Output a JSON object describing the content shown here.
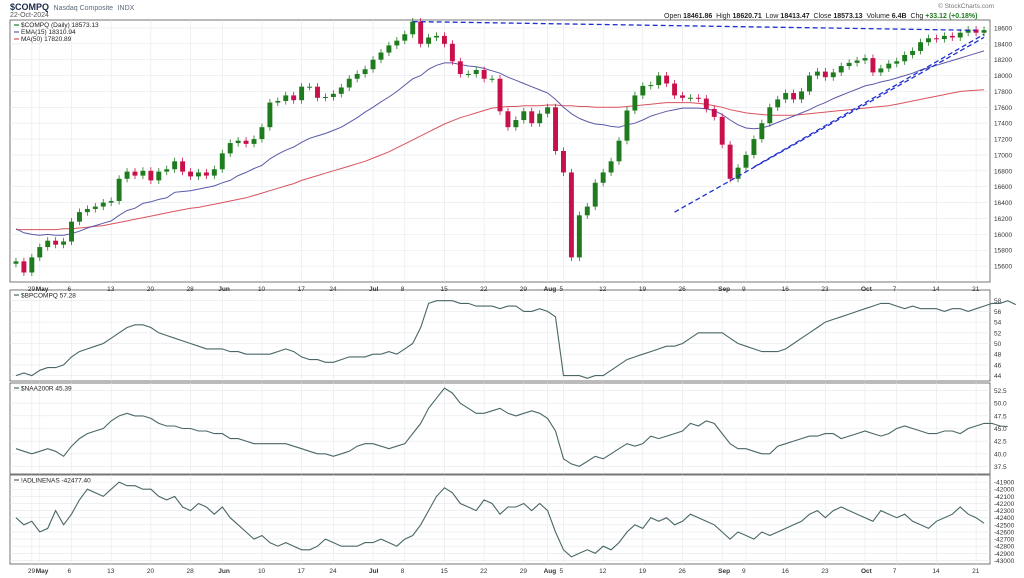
{
  "header": {
    "symbol": "$COMPQ",
    "name": "Nasdaq Composite",
    "exchange": "INDX",
    "date": "22-Oct-2024",
    "ohlc": {
      "open_label": "Open",
      "open": "18461.86",
      "high_label": "High",
      "high": "18620.71",
      "low_label": "Low",
      "low": "18413.47",
      "close_label": "Close",
      "close": "18573.13",
      "volume_label": "Volume",
      "volume": "6.4B",
      "chg_label": "Chg",
      "chg": "+33.12 (+0.18%)"
    },
    "brand": "© StockCharts.com"
  },
  "colors": {
    "up": "#1e7b1e",
    "down": "#c8104a",
    "ema": "#5a5aa8",
    "ma": "#d9535f",
    "trend": "#1f2fd0",
    "ind": "#4a6666",
    "grid": "#e4e8ec",
    "panelbg": "#ffffff"
  },
  "chart_data": [
    {
      "type": "candlestick",
      "legend": [
        {
          "text": "$COMPQ (Daily) 18573.13",
          "color": "#1e7b1e",
          "key": "price"
        },
        {
          "text": "EMA(15) 18310.94",
          "color": "#5a5aa8",
          "key": "ema"
        },
        {
          "text": "MA(50) 17820.89",
          "color": "#d9535f",
          "key": "ma"
        }
      ],
      "ylim": [
        15400,
        18700
      ],
      "yticks": [
        15600,
        15800,
        16000,
        16200,
        16400,
        16600,
        16800,
        17000,
        17200,
        17400,
        17600,
        17800,
        18000,
        18200,
        18400,
        18600
      ],
      "x_ticks": [
        {
          "i": 2,
          "label": "29"
        },
        {
          "i": 3,
          "label": "May",
          "bold": true
        },
        {
          "i": 7,
          "label": "6"
        },
        {
          "i": 12,
          "label": "13"
        },
        {
          "i": 17,
          "label": "20"
        },
        {
          "i": 22,
          "label": "28"
        },
        {
          "i": 26,
          "label": "Jun",
          "bold": true
        },
        {
          "i": 31,
          "label": "10"
        },
        {
          "i": 36,
          "label": "17"
        },
        {
          "i": 40,
          "label": "24"
        },
        {
          "i": 45,
          "label": "Jul",
          "bold": true
        },
        {
          "i": 49,
          "label": "8"
        },
        {
          "i": 54,
          "label": "15"
        },
        {
          "i": 59,
          "label": "22"
        },
        {
          "i": 64,
          "label": "29"
        },
        {
          "i": 67,
          "label": "Aug",
          "bold": true
        },
        {
          "i": 69,
          "label": "5"
        },
        {
          "i": 74,
          "label": "12"
        },
        {
          "i": 79,
          "label": "19"
        },
        {
          "i": 84,
          "label": "26"
        },
        {
          "i": 89,
          "label": "Sep",
          "bold": true
        },
        {
          "i": 92,
          "label": "9"
        },
        {
          "i": 97,
          "label": "16"
        },
        {
          "i": 102,
          "label": "23"
        },
        {
          "i": 107,
          "label": "Oct",
          "bold": true
        },
        {
          "i": 111,
          "label": "7"
        },
        {
          "i": 116,
          "label": "14"
        },
        {
          "i": 121,
          "label": "21"
        }
      ],
      "close": [
        15660,
        15520,
        15710,
        15840,
        15920,
        15870,
        15910,
        16160,
        16280,
        16320,
        16350,
        16400,
        16420,
        16700,
        16790,
        16740,
        16800,
        16680,
        16790,
        16820,
        16920,
        16790,
        16730,
        16780,
        16740,
        16820,
        17020,
        17150,
        17180,
        17140,
        17200,
        17350,
        17660,
        17680,
        17750,
        17690,
        17860,
        17860,
        17720,
        17730,
        17770,
        17850,
        17960,
        18020,
        18080,
        18200,
        18290,
        18380,
        18440,
        18520,
        18680,
        18400,
        18480,
        18500,
        18400,
        18180,
        18020,
        18020,
        18070,
        17960,
        17960,
        17550,
        17350,
        17440,
        17550,
        17400,
        17520,
        17600,
        17050,
        16780,
        15710,
        16240,
        16350,
        16650,
        16780,
        16920,
        17180,
        17560,
        17750,
        17870,
        17880,
        18000,
        17900,
        17750,
        17720,
        17720,
        17710,
        17580,
        17480,
        17130,
        16700,
        16840,
        17000,
        17200,
        17400,
        17600,
        17700,
        17780,
        17700,
        17800,
        18000,
        18050,
        17980,
        18040,
        18120,
        18160,
        18190,
        18220,
        18040,
        18090,
        18150,
        18180,
        18260,
        18310,
        18420,
        18470,
        18460,
        18500,
        18480,
        18540,
        18580,
        18540,
        18573
      ],
      "ema": [
        16070,
        16020,
        16000,
        15990,
        16000,
        15990,
        15990,
        16010,
        16040,
        16080,
        16110,
        16140,
        16170,
        16240,
        16300,
        16330,
        16390,
        16410,
        16440,
        16460,
        16530,
        16540,
        16550,
        16570,
        16590,
        16610,
        16650,
        16680,
        16740,
        16780,
        16830,
        16870,
        16950,
        17010,
        17060,
        17100,
        17160,
        17210,
        17240,
        17270,
        17310,
        17350,
        17410,
        17470,
        17540,
        17600,
        17670,
        17730,
        17800,
        17880,
        17960,
        18000,
        18080,
        18130,
        18160,
        18160,
        18140,
        18120,
        18110,
        18090,
        18060,
        18030,
        17980,
        17940,
        17900,
        17860,
        17820,
        17780,
        17700,
        17600,
        17520,
        17460,
        17420,
        17390,
        17380,
        17360,
        17350,
        17380,
        17400,
        17440,
        17490,
        17520,
        17550,
        17570,
        17590,
        17590,
        17590,
        17580,
        17560,
        17510,
        17440,
        17380,
        17340,
        17330,
        17340,
        17370,
        17410,
        17450,
        17490,
        17530,
        17570,
        17620,
        17660,
        17710,
        17750,
        17790,
        17830,
        17870,
        17890,
        17920,
        17940,
        17970,
        18000,
        18030,
        18070,
        18100,
        18130,
        18160,
        18190,
        18220,
        18250,
        18280,
        18311
      ],
      "ma": [
        16060,
        16060,
        16060,
        16060,
        16060,
        16060,
        16070,
        16070,
        16080,
        16090,
        16100,
        16110,
        16130,
        16150,
        16170,
        16190,
        16210,
        16230,
        16250,
        16270,
        16290,
        16310,
        16330,
        16340,
        16360,
        16380,
        16400,
        16420,
        16440,
        16460,
        16490,
        16520,
        16550,
        16580,
        16610,
        16640,
        16680,
        16710,
        16740,
        16770,
        16800,
        16830,
        16860,
        16890,
        16920,
        16960,
        17000,
        17040,
        17090,
        17140,
        17190,
        17240,
        17290,
        17340,
        17390,
        17430,
        17470,
        17500,
        17530,
        17560,
        17590,
        17600,
        17610,
        17610,
        17620,
        17620,
        17620,
        17630,
        17630,
        17620,
        17620,
        17610,
        17610,
        17600,
        17600,
        17600,
        17600,
        17610,
        17620,
        17630,
        17640,
        17650,
        17660,
        17660,
        17660,
        17660,
        17650,
        17640,
        17620,
        17600,
        17570,
        17550,
        17530,
        17520,
        17510,
        17500,
        17500,
        17500,
        17500,
        17510,
        17520,
        17530,
        17540,
        17550,
        17560,
        17570,
        17580,
        17590,
        17600,
        17610,
        17620,
        17640,
        17660,
        17680,
        17700,
        17720,
        17740,
        17760,
        17780,
        17800,
        17810,
        17815,
        17821
      ],
      "trendlines": [
        {
          "from": {
            "i": 50,
            "v": 18680
          },
          "to": {
            "i": 121,
            "v": 18570
          }
        },
        {
          "from": {
            "i": 83,
            "v": 16280
          },
          "to": {
            "i": 122,
            "v": 18480
          }
        },
        {
          "from": {
            "i": 93,
            "v": 16850
          },
          "to": {
            "i": 122,
            "v": 18520
          }
        }
      ]
    },
    {
      "type": "line",
      "legend": "$BPCOMPQ 57.28",
      "ylim": [
        43,
        60
      ],
      "yticks": [
        44,
        46,
        48,
        50,
        52,
        54,
        56,
        58
      ],
      "values": [
        44,
        44.5,
        44,
        45,
        45.5,
        45.5,
        46,
        47.5,
        48.5,
        49,
        49.5,
        50,
        51,
        52,
        53,
        53.5,
        53.5,
        53,
        52,
        51.5,
        51,
        50.5,
        50,
        49.5,
        49,
        49,
        49,
        48.5,
        48.5,
        48,
        48,
        48,
        48,
        48.5,
        49,
        48.5,
        47.5,
        47,
        47,
        46.5,
        46.5,
        47,
        47.5,
        47.5,
        47.5,
        48,
        48,
        48.5,
        48,
        49,
        50,
        53,
        57.5,
        58,
        58,
        58,
        57.5,
        57.5,
        57,
        57,
        57,
        56.5,
        57,
        57,
        56,
        56,
        56.5,
        56,
        55,
        44,
        44,
        44,
        43.5,
        44,
        44,
        45,
        46,
        47,
        47.5,
        48,
        48.5,
        49,
        49.5,
        49.5,
        50,
        51,
        52,
        52,
        52,
        52,
        51,
        50,
        49.5,
        49,
        48.5,
        48.5,
        48.5,
        49,
        50,
        51,
        52,
        53,
        54,
        54.5,
        55,
        55.5,
        56,
        56.5,
        57,
        57.5,
        57.5,
        57,
        56.5,
        57,
        56.5,
        56.5,
        56.5,
        56,
        56.5,
        56.5,
        56,
        56.5,
        57,
        57.5,
        57.5,
        58,
        57.28
      ]
    },
    {
      "type": "line",
      "legend": "$NAA200R 45.39",
      "ylim": [
        36,
        54
      ],
      "yticks": [
        37.5,
        40.0,
        42.5,
        45.0,
        47.5,
        50.0,
        52.5
      ],
      "values": [
        41,
        40.5,
        40,
        40.5,
        41,
        40.5,
        39.5,
        41.5,
        43,
        44,
        44.5,
        45,
        46.5,
        47.5,
        48,
        47.5,
        47.5,
        47,
        46,
        45.5,
        45.5,
        45,
        45,
        44.5,
        44.5,
        44,
        44,
        43,
        43,
        42.5,
        42,
        42,
        42,
        42,
        42,
        41.5,
        41,
        40.5,
        40,
        40,
        39.5,
        40,
        40.5,
        41.5,
        42,
        42,
        41.5,
        41,
        41.5,
        42,
        44,
        46,
        49,
        51,
        53,
        52,
        50,
        49,
        48,
        48,
        48.5,
        49,
        48,
        47.5,
        48,
        48.5,
        48,
        47,
        44.5,
        39,
        38,
        37.5,
        38.5,
        39.5,
        39,
        40,
        41,
        42,
        41.5,
        42,
        43.5,
        43,
        43.5,
        44,
        44.5,
        46,
        45.5,
        46.5,
        46,
        44,
        42,
        41,
        41,
        40.5,
        40,
        40,
        41.5,
        42,
        42.5,
        43,
        43.5,
        43.5,
        44,
        44,
        43,
        43.5,
        44,
        44.5,
        44,
        43.5,
        44,
        45,
        45.5,
        45,
        44.5,
        44,
        44,
        44.5,
        44.5,
        44,
        45,
        45.5,
        46,
        46,
        45.5,
        45.39
      ]
    },
    {
      "type": "line",
      "legend": "!ADLINENAS -42477.40",
      "ylim": [
        -43050,
        -41800
      ],
      "yticks": [
        -41900,
        -42000,
        -42100,
        -42200,
        -42300,
        -42400,
        -42500,
        -42600,
        -42700,
        -42800,
        -42900,
        -43000
      ],
      "values": [
        -42400,
        -42500,
        -42450,
        -42600,
        -42550,
        -42300,
        -42500,
        -42350,
        -42150,
        -42000,
        -42050,
        -42100,
        -42000,
        -41900,
        -41950,
        -41950,
        -42000,
        -42000,
        -42100,
        -42150,
        -42100,
        -42250,
        -42300,
        -42200,
        -42250,
        -42350,
        -42250,
        -42400,
        -42500,
        -42600,
        -42700,
        -42650,
        -42750,
        -42800,
        -42750,
        -42800,
        -42850,
        -42850,
        -42800,
        -42700,
        -42750,
        -42800,
        -42800,
        -42800,
        -42750,
        -42750,
        -42700,
        -42750,
        -42800,
        -42700,
        -42650,
        -42500,
        -42300,
        -42100,
        -41980,
        -42050,
        -42200,
        -42250,
        -42300,
        -42150,
        -42200,
        -42350,
        -42250,
        -42250,
        -42200,
        -42300,
        -42200,
        -42300,
        -42600,
        -42850,
        -42950,
        -42900,
        -42850,
        -42900,
        -42800,
        -42850,
        -42750,
        -42600,
        -42500,
        -42550,
        -42400,
        -42450,
        -42400,
        -42500,
        -42450,
        -42350,
        -42400,
        -42450,
        -42500,
        -42600,
        -42700,
        -42600,
        -42650,
        -42700,
        -42600,
        -42650,
        -42600,
        -42550,
        -42500,
        -42450,
        -42350,
        -42300,
        -42400,
        -42300,
        -42250,
        -42300,
        -42350,
        -42400,
        -42450,
        -42300,
        -42350,
        -42400,
        -42350,
        -42450,
        -42500,
        -42550,
        -42450,
        -42400,
        -42350,
        -42250,
        -42350,
        -42400,
        -42477.4
      ]
    }
  ]
}
